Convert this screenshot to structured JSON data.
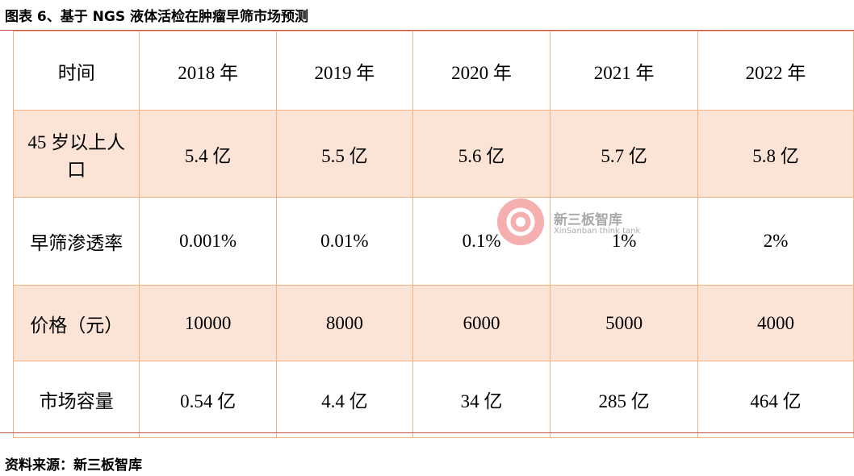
{
  "header": {
    "title": "图表 6、基于 NGS 液体活检在肿瘤早筛市场预测"
  },
  "table": {
    "header": [
      "时间",
      "2018 年",
      "2019 年",
      "2020 年",
      "2021 年",
      "2022 年"
    ],
    "rows": [
      [
        "45 岁以上人口",
        "5.4 亿",
        "5.5 亿",
        "5.6 亿",
        "5.7 亿",
        "5.8 亿"
      ],
      [
        "早筛渗透率",
        "0.001%",
        "0.01%",
        "0.1%",
        "1%",
        "2%"
      ],
      [
        "价格（元）",
        "10000",
        "8000",
        "6000",
        "5000",
        "4000"
      ],
      [
        "市场容量",
        "0.54 亿",
        "4.4 亿",
        "34 亿",
        "285 亿",
        "464 亿"
      ]
    ]
  },
  "watermark": {
    "name": "新三板智库",
    "subtitle": "XinSanban think tank"
  },
  "footer": {
    "source": "资料来源：新三板智库"
  }
}
